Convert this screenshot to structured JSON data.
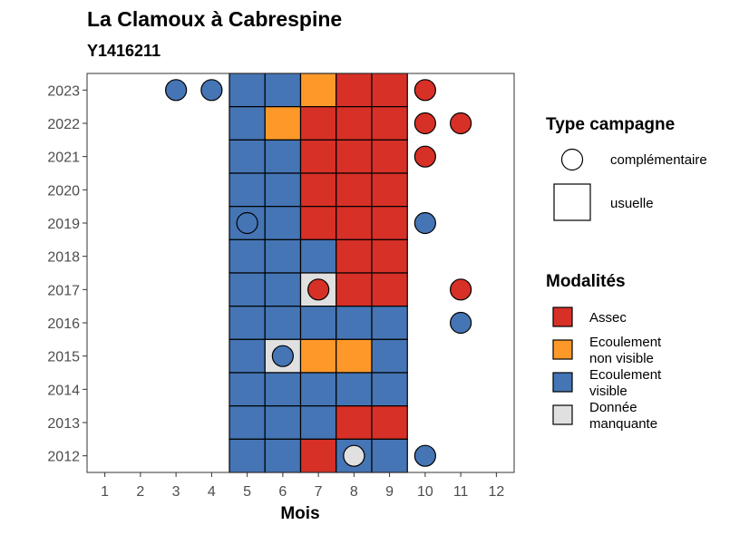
{
  "chart_data": {
    "type": "heatmap",
    "title": "La Clamoux à Cabrespine",
    "subtitle": "Y1416211",
    "xlabel": "Mois",
    "ylabel": "",
    "x_ticks": [
      "1",
      "2",
      "3",
      "4",
      "5",
      "6",
      "7",
      "8",
      "9",
      "10",
      "11",
      "12"
    ],
    "y_ticks": [
      "2012",
      "2013",
      "2014",
      "2015",
      "2016",
      "2017",
      "2018",
      "2019",
      "2020",
      "2021",
      "2022",
      "2023"
    ],
    "xlim": [
      0.5,
      12.5
    ],
    "ylim": [
      2011.5,
      2023.5
    ],
    "colors": {
      "Assec": "#d73027",
      "Ecoulement non visible": "#fe9929",
      "Ecoulement visible": "#4575b4",
      "Donnée manquante": "#e0e0e0"
    },
    "legend_type": {
      "title": "Type campagne",
      "entries": [
        {
          "label": "complémentaire",
          "shape": "circle"
        },
        {
          "label": "usuelle",
          "shape": "square"
        }
      ]
    },
    "legend_modalites": {
      "title": "Modalités",
      "entries": [
        {
          "key": "Assec",
          "lines": [
            "Assec"
          ]
        },
        {
          "key": "Ecoulement non visible",
          "lines": [
            "Ecoulement",
            "non visible"
          ]
        },
        {
          "key": "Ecoulement visible",
          "lines": [
            "Ecoulement",
            "visible"
          ]
        },
        {
          "key": "Donnée manquante",
          "lines": [
            "Donnée",
            "manquante"
          ]
        }
      ]
    },
    "usuelle": [
      {
        "year": 2023,
        "values": {
          "5": "Ecoulement visible",
          "6": "Ecoulement visible",
          "7": "Ecoulement non visible",
          "8": "Assec",
          "9": "Assec"
        }
      },
      {
        "year": 2022,
        "values": {
          "5": "Ecoulement visible",
          "6": "Ecoulement non visible",
          "7": "Assec",
          "8": "Assec",
          "9": "Assec"
        }
      },
      {
        "year": 2021,
        "values": {
          "5": "Ecoulement visible",
          "6": "Ecoulement visible",
          "7": "Assec",
          "8": "Assec",
          "9": "Assec"
        }
      },
      {
        "year": 2020,
        "values": {
          "5": "Ecoulement visible",
          "6": "Ecoulement visible",
          "7": "Assec",
          "8": "Assec",
          "9": "Assec"
        }
      },
      {
        "year": 2019,
        "values": {
          "5": "Ecoulement visible",
          "6": "Ecoulement visible",
          "7": "Assec",
          "8": "Assec",
          "9": "Assec"
        }
      },
      {
        "year": 2018,
        "values": {
          "5": "Ecoulement visible",
          "6": "Ecoulement visible",
          "7": "Ecoulement visible",
          "8": "Assec",
          "9": "Assec"
        }
      },
      {
        "year": 2017,
        "values": {
          "5": "Ecoulement visible",
          "6": "Ecoulement visible",
          "7": "Donnée manquante",
          "8": "Assec",
          "9": "Assec"
        }
      },
      {
        "year": 2016,
        "values": {
          "5": "Ecoulement visible",
          "6": "Ecoulement visible",
          "7": "Ecoulement visible",
          "8": "Ecoulement visible",
          "9": "Ecoulement visible"
        }
      },
      {
        "year": 2015,
        "values": {
          "5": "Ecoulement visible",
          "6": "Donnée manquante",
          "7": "Ecoulement non visible",
          "8": "Ecoulement non visible",
          "9": "Ecoulement visible"
        }
      },
      {
        "year": 2014,
        "values": {
          "5": "Ecoulement visible",
          "6": "Ecoulement visible",
          "7": "Ecoulement visible",
          "8": "Ecoulement visible",
          "9": "Ecoulement visible"
        }
      },
      {
        "year": 2013,
        "values": {
          "5": "Ecoulement visible",
          "6": "Ecoulement visible",
          "7": "Ecoulement visible",
          "8": "Assec",
          "9": "Assec"
        }
      },
      {
        "year": 2012,
        "values": {
          "5": "Ecoulement visible",
          "6": "Ecoulement visible",
          "7": "Assec",
          "8": "Ecoulement visible",
          "9": "Ecoulement visible"
        }
      }
    ],
    "complementaire": [
      {
        "year": 2023,
        "month": 3,
        "value": "Ecoulement visible"
      },
      {
        "year": 2023,
        "month": 4,
        "value": "Ecoulement visible"
      },
      {
        "year": 2023,
        "month": 10,
        "value": "Assec"
      },
      {
        "year": 2022,
        "month": 10,
        "value": "Assec"
      },
      {
        "year": 2022,
        "month": 11,
        "value": "Assec"
      },
      {
        "year": 2021,
        "month": 10,
        "value": "Assec"
      },
      {
        "year": 2019,
        "month": 5,
        "value": "Ecoulement visible"
      },
      {
        "year": 2019,
        "month": 10,
        "value": "Ecoulement visible"
      },
      {
        "year": 2017,
        "month": 7,
        "value": "Assec"
      },
      {
        "year": 2017,
        "month": 11,
        "value": "Assec"
      },
      {
        "year": 2016,
        "month": 11,
        "value": "Ecoulement visible"
      },
      {
        "year": 2015,
        "month": 6,
        "value": "Ecoulement visible"
      },
      {
        "year": 2012,
        "month": 8,
        "value": "Donnée manquante"
      },
      {
        "year": 2012,
        "month": 10,
        "value": "Ecoulement visible"
      }
    ]
  }
}
